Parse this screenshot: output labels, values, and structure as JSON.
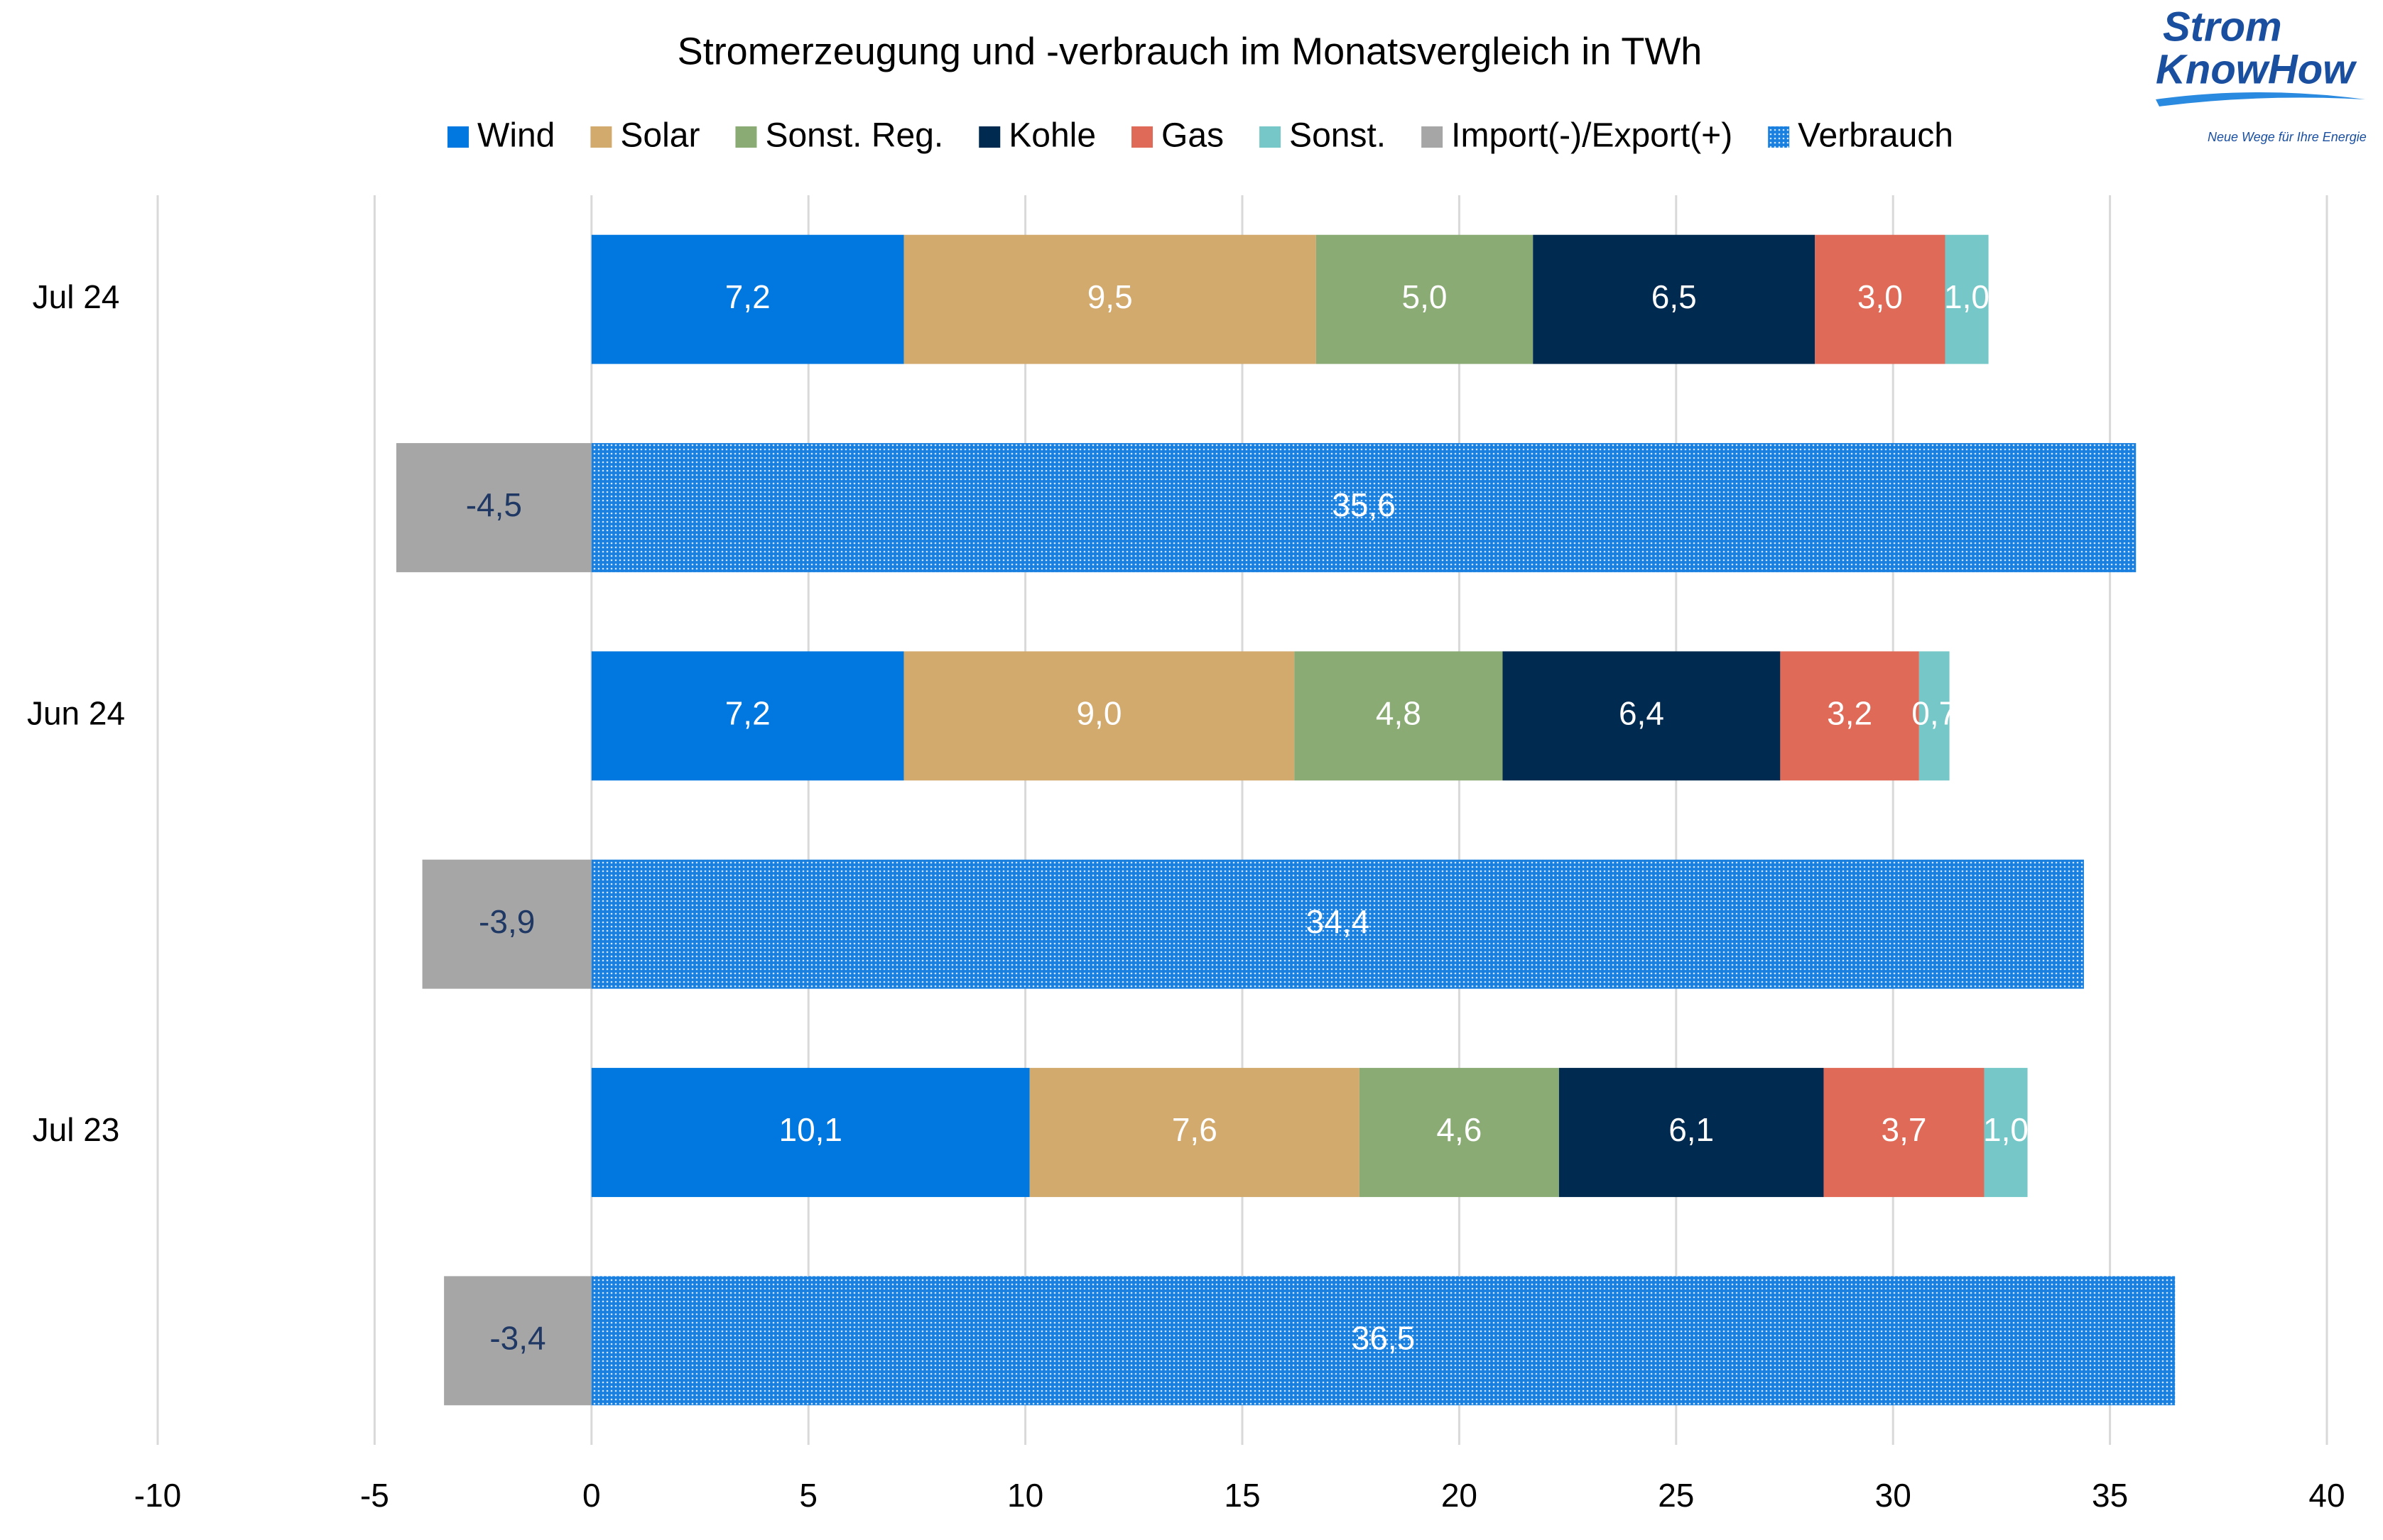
{
  "chart_data": {
    "type": "stacked-hbar",
    "title": "Stromerzeugung und -verbrauch im Monatsvergleich in TWh",
    "categories": [
      "Jul 24",
      null,
      "Jun 24",
      null,
      "Jul 23",
      null
    ],
    "series": [
      {
        "name": "Wind",
        "color": "#0078e0",
        "label_color": "#ffffff",
        "values": [
          7.2,
          null,
          7.2,
          null,
          10.1,
          null
        ],
        "value_labels": [
          "7,2",
          null,
          "7,2",
          null,
          "10,1",
          null
        ]
      },
      {
        "name": "Solar",
        "color": "#d2aa6e",
        "label_color": "#ffffff",
        "values": [
          9.5,
          null,
          9.0,
          null,
          7.6,
          null
        ],
        "value_labels": [
          "9,5",
          null,
          "9,0",
          null,
          "7,6",
          null
        ]
      },
      {
        "name": "Sonst. Reg.",
        "color": "#8aab74",
        "label_color": "#ffffff",
        "values": [
          5.0,
          null,
          4.8,
          null,
          4.6,
          null
        ],
        "value_labels": [
          "5,0",
          null,
          "4,8",
          null,
          "4,6",
          null
        ]
      },
      {
        "name": "Kohle",
        "color": "#002a50",
        "label_color": "#ffffff",
        "values": [
          6.5,
          null,
          6.4,
          null,
          6.1,
          null
        ],
        "value_labels": [
          "6,5",
          null,
          "6,4",
          null,
          "6,1",
          null
        ]
      },
      {
        "name": "Gas",
        "color": "#e06a58",
        "label_color": "#ffffff",
        "values": [
          3.0,
          null,
          3.2,
          null,
          3.7,
          null
        ],
        "value_labels": [
          "3,0",
          null,
          "3,2",
          null,
          "3,7",
          null
        ]
      },
      {
        "name": "Sonst.",
        "color": "#76c8c8",
        "label_color": "#ffffff",
        "values": [
          1.0,
          null,
          0.7,
          null,
          1.0,
          null
        ],
        "value_labels": [
          "1,0",
          null,
          "0,7",
          null,
          "1,0",
          null
        ]
      },
      {
        "name": "Import(-)/Export(+)",
        "color": "#a6a6a6",
        "label_color": "#1f3864",
        "values": [
          null,
          -4.5,
          null,
          -3.9,
          null,
          -3.4
        ],
        "value_labels": [
          null,
          "-4,5",
          null,
          "-3,9",
          null,
          "-3,4"
        ]
      },
      {
        "name": "Verbrauch",
        "color": "#1a80e0",
        "label_color": "#ffffff",
        "pattern": "dots",
        "values": [
          null,
          35.6,
          null,
          34.4,
          null,
          36.5
        ],
        "value_labels": [
          null,
          "35,6",
          null,
          "34,4",
          null,
          "36,5"
        ]
      }
    ],
    "xlim": [
      -10,
      40
    ],
    "xticks": [
      -10,
      -5,
      0,
      5,
      10,
      15,
      20,
      25,
      30,
      35,
      40
    ],
    "grid": true,
    "legend": "top"
  },
  "logo": {
    "line1": "Strom",
    "line2": "KnowHow",
    "tagline": "Neue Wege für Ihre Energie"
  }
}
